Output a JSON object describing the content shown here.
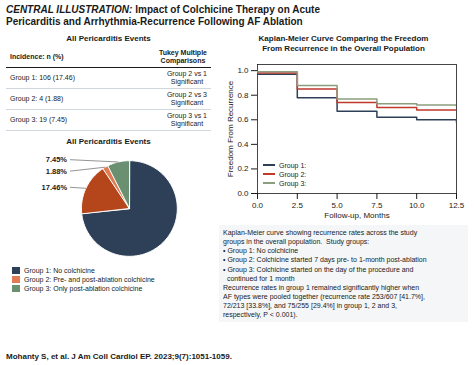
{
  "title": "CENTRAL ILLUSTRATION:",
  "subtitle": "Impact of Colchicine Therapy on Acute\nPericarditis and Arrhythmia-Recurrence Following AF Ablation",
  "caption": "Mohanty S, et al. J Am Coll Cardiol EP. 2023;9(7):1051-1059.",
  "chart_data": [
    {
      "type": "table",
      "title": "All Pericarditis Events",
      "rows": [
        [
          "Incidence: n (%)",
          "Tukey Multiple\nComparisons"
        ],
        [
          "Group 1: 106 (17.46)",
          "Group 2 vs 1\nSignificant"
        ],
        [
          "Group 2: 4 (1.88)",
          "Group 2 vs 3\nSignificant"
        ],
        [
          "Group 3: 19 (7.45)",
          "Group 3 vs 1\nSignificant"
        ]
      ]
    },
    {
      "type": "pie",
      "title": "All Pericarditis Events",
      "categories": [
        "Group 1: No colchicine",
        null,
        "Group 2: Pre- and post-ablation colchicine",
        "Group 3: Only post-ablation colchicine"
      ],
      "values": [
        73.21,
        17.46,
        1.88,
        7.45
      ],
      "colors": [
        "#2e4057",
        "#b5451b",
        "#e07b54",
        "#6b8f71"
      ],
      "data_labels": true,
      "value_labels": [
        null,
        "17.46%",
        "1.88%",
        "7.45%"
      ],
      "legend": "bottom"
    },
    {
      "type": "step",
      "title": "Kaplan-Meier Curve Comparing the Freedom\nFrom Recurrence in the Overall Population",
      "xlabel": "Follow-up, Months",
      "ylabel": "Freedom From Recurrence",
      "x": [
        0,
        2.5,
        2.5,
        5.0,
        5.0,
        7.5,
        7.5,
        10.0,
        10.0,
        12.5
      ],
      "series": [
        {
          "name": "Group 1:",
          "color": "#2e4057",
          "values": [
            0.97,
            0.97,
            0.78,
            0.78,
            0.67,
            0.67,
            0.62,
            0.62,
            0.6,
            0.58
          ]
        },
        {
          "name": "Group 2:",
          "color": "#c0392b",
          "values": [
            0.98,
            0.98,
            0.85,
            0.85,
            0.74,
            0.74,
            0.7,
            0.7,
            0.68,
            0.68
          ]
        },
        {
          "name": "Group 3:",
          "color": "#8b9e7e",
          "values": [
            0.99,
            0.99,
            0.88,
            0.88,
            0.77,
            0.77,
            0.73,
            0.73,
            0.72,
            0.71
          ]
        }
      ],
      "xlim": [
        0,
        12.5
      ],
      "ylim": [
        0.0,
        1.05
      ],
      "xticks": [
        {
          "value": 0,
          "label": "0.0"
        },
        2.5,
        {
          "value": 5,
          "label": "5.0"
        },
        7.5,
        {
          "value": 10,
          "label": "10.0"
        },
        12.5
      ],
      "yticks": [
        {
          "value": 0,
          "label": "0.0"
        },
        0.2,
        0.4,
        0.6,
        0.8,
        {
          "value": 1,
          "label": "1.0"
        }
      ],
      "grid": false,
      "legend": "bottom-left",
      "annotations": [
        "Kaplan-Meier curve showing recurrence rates across the study\ngroups in the overall population.  Study groups:\n• Group 1: No colchicine\n• Group 2: Colchicine started 7 days pre- to 1-month post-ablation\n• Group 3: Colchicine started on the day of the procedure and\n  continued for 1 month\nRecurrence rates in group 1 remained significantly higher when\nAF types were pooled together (recurrence rate 253/607 [41.7%],\n72/213 [33.8%], and 75/255 [29.4%] in group 1, 2 and 3,\nrespectively, P < 0.001)."
      ]
    }
  ]
}
